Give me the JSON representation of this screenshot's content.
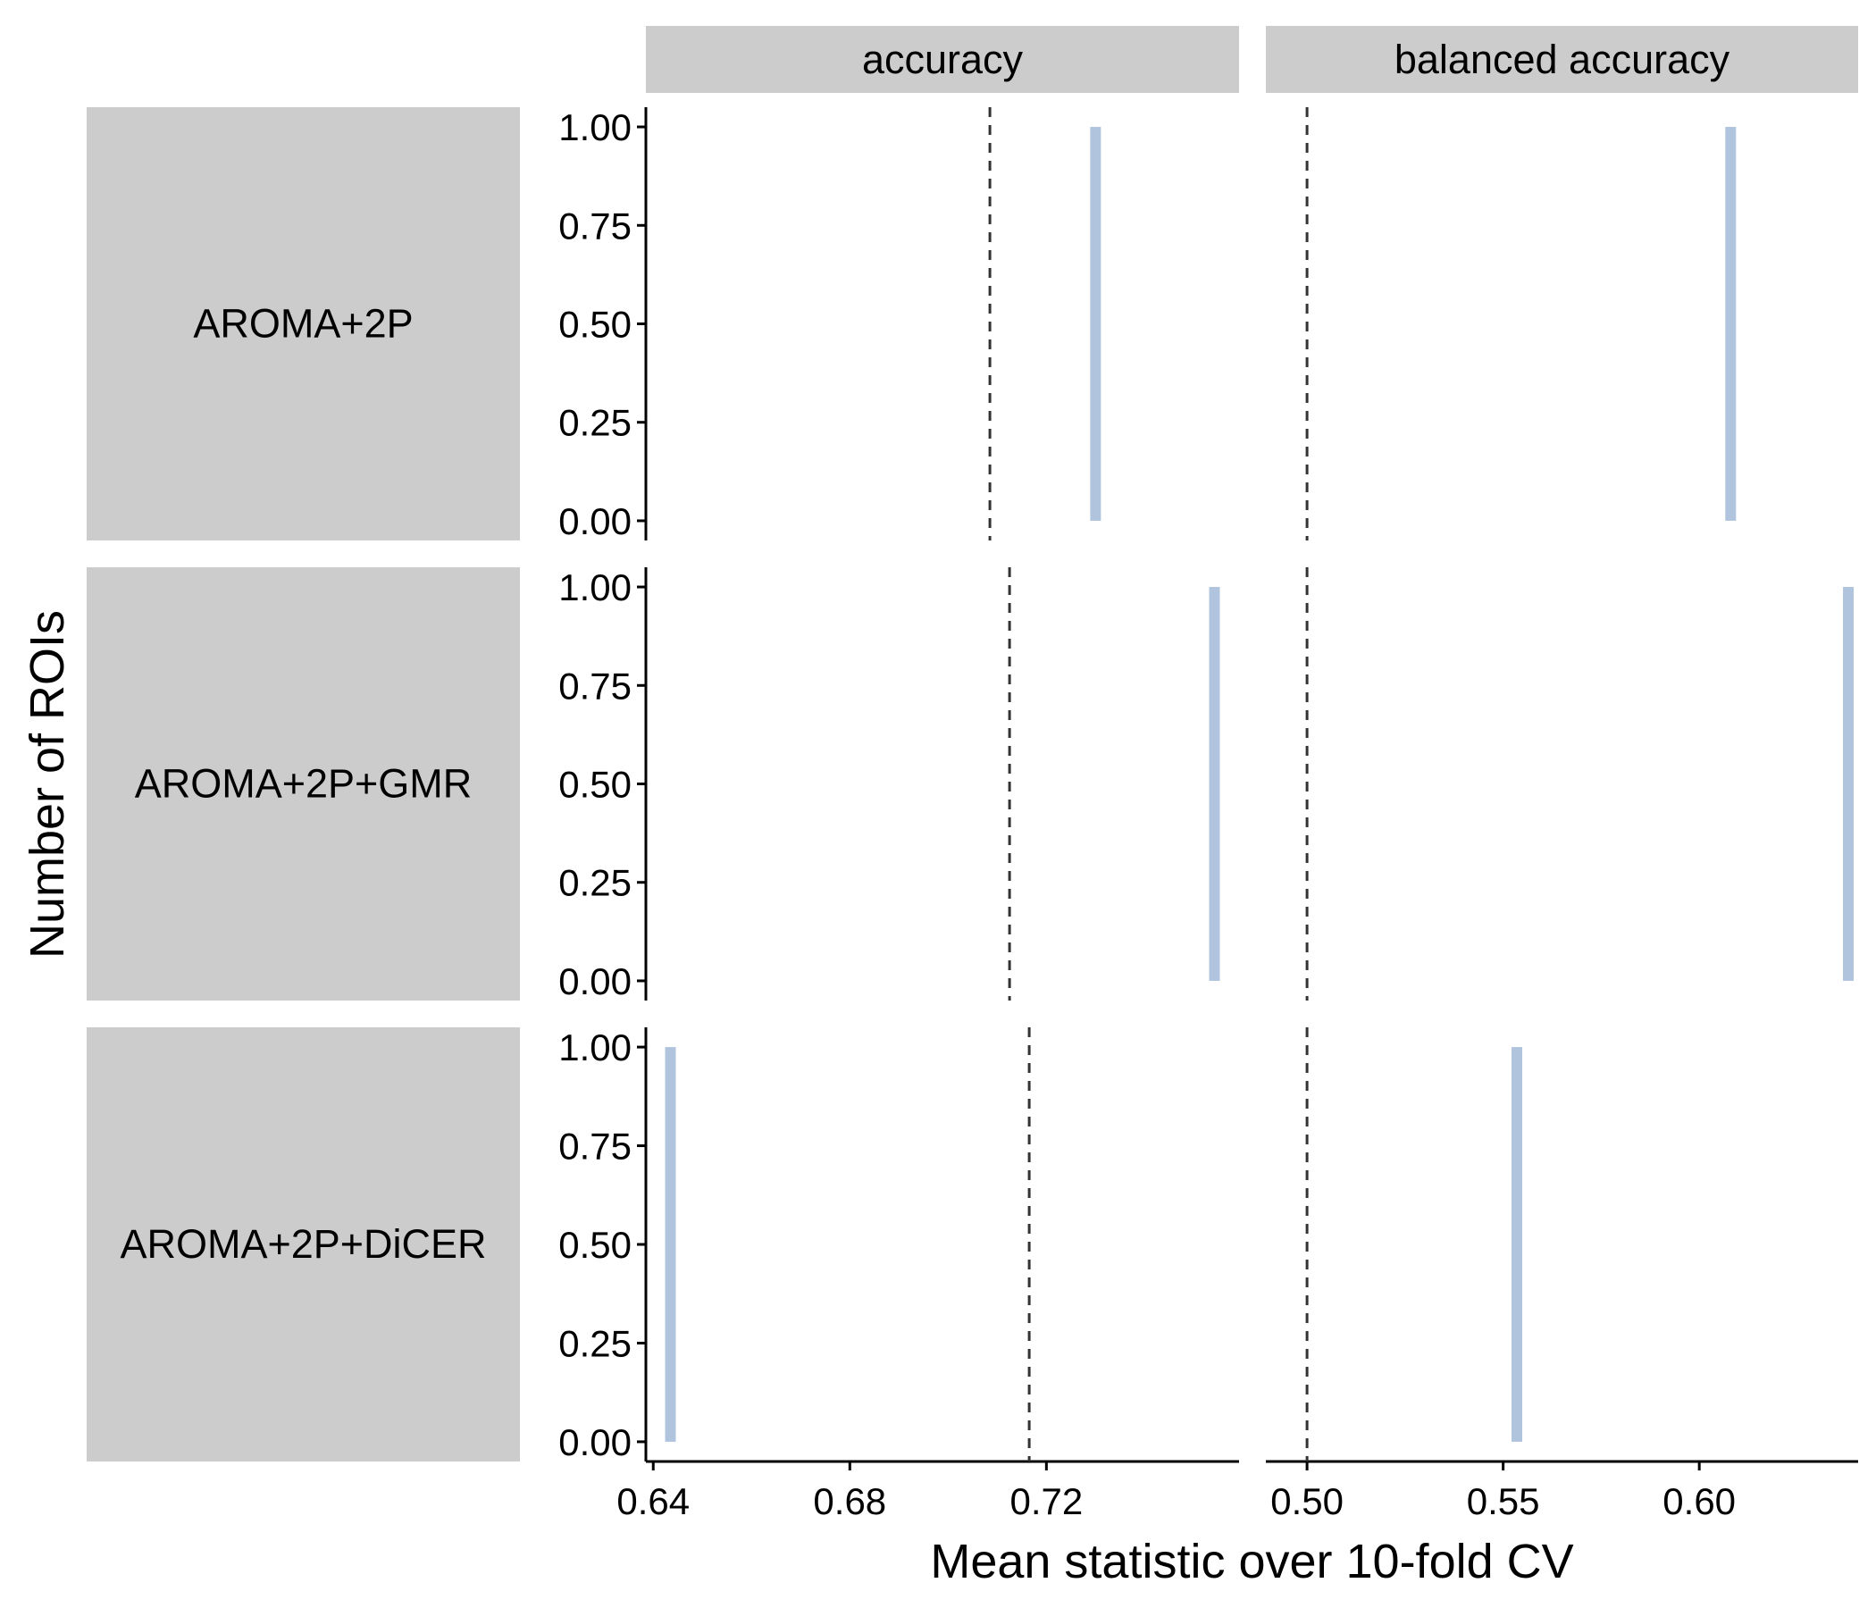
{
  "chart_data": {
    "type": "faceted-histogram",
    "xlabel": "Mean statistic over 10-fold CV",
    "ylabel": "Number of ROIs",
    "column_facets": [
      {
        "label": "accuracy",
        "xlim": [
          0.6385,
          0.7592
        ],
        "xticks": [
          0.64,
          0.68,
          0.72
        ],
        "xtick_labels": [
          "0.64",
          "0.68",
          "0.72"
        ]
      },
      {
        "label": "balanced accuracy",
        "xlim": [
          0.4895,
          0.6405
        ],
        "xticks": [
          0.5,
          0.55,
          0.6
        ],
        "xtick_labels": [
          "0.50",
          "0.55",
          "0.60"
        ]
      }
    ],
    "row_facets": [
      "AROMA+2P",
      "AROMA+2P+GMR",
      "AROMA+2P+DiCER"
    ],
    "ylim": [
      -0.05,
      1.05
    ],
    "yticks": [
      0.0,
      0.25,
      0.5,
      0.75,
      1.0
    ],
    "ytick_labels": [
      "0.00",
      "0.25",
      "0.50",
      "0.75",
      "1.00"
    ],
    "panels": [
      {
        "row": 0,
        "col": 0,
        "bar_x": 0.73,
        "count": 1,
        "ref_line_x": 0.7085
      },
      {
        "row": 0,
        "col": 1,
        "bar_x": 0.608,
        "count": 1,
        "ref_line_x": 0.5
      },
      {
        "row": 1,
        "col": 0,
        "bar_x": 0.7542,
        "count": 1,
        "ref_line_x": 0.7125
      },
      {
        "row": 1,
        "col": 1,
        "bar_x": 0.638,
        "count": 1,
        "ref_line_x": 0.5
      },
      {
        "row": 2,
        "col": 0,
        "bar_x": 0.6435,
        "count": 1,
        "ref_line_x": 0.7165
      },
      {
        "row": 2,
        "col": 1,
        "bar_x": 0.5535,
        "count": 1,
        "ref_line_x": 0.5
      }
    ],
    "colors": {
      "bar": "#b0c4de",
      "strip": "#cccccc",
      "ref_line": "#333333",
      "axis": "#000000"
    },
    "grid": false,
    "legend": "none"
  }
}
